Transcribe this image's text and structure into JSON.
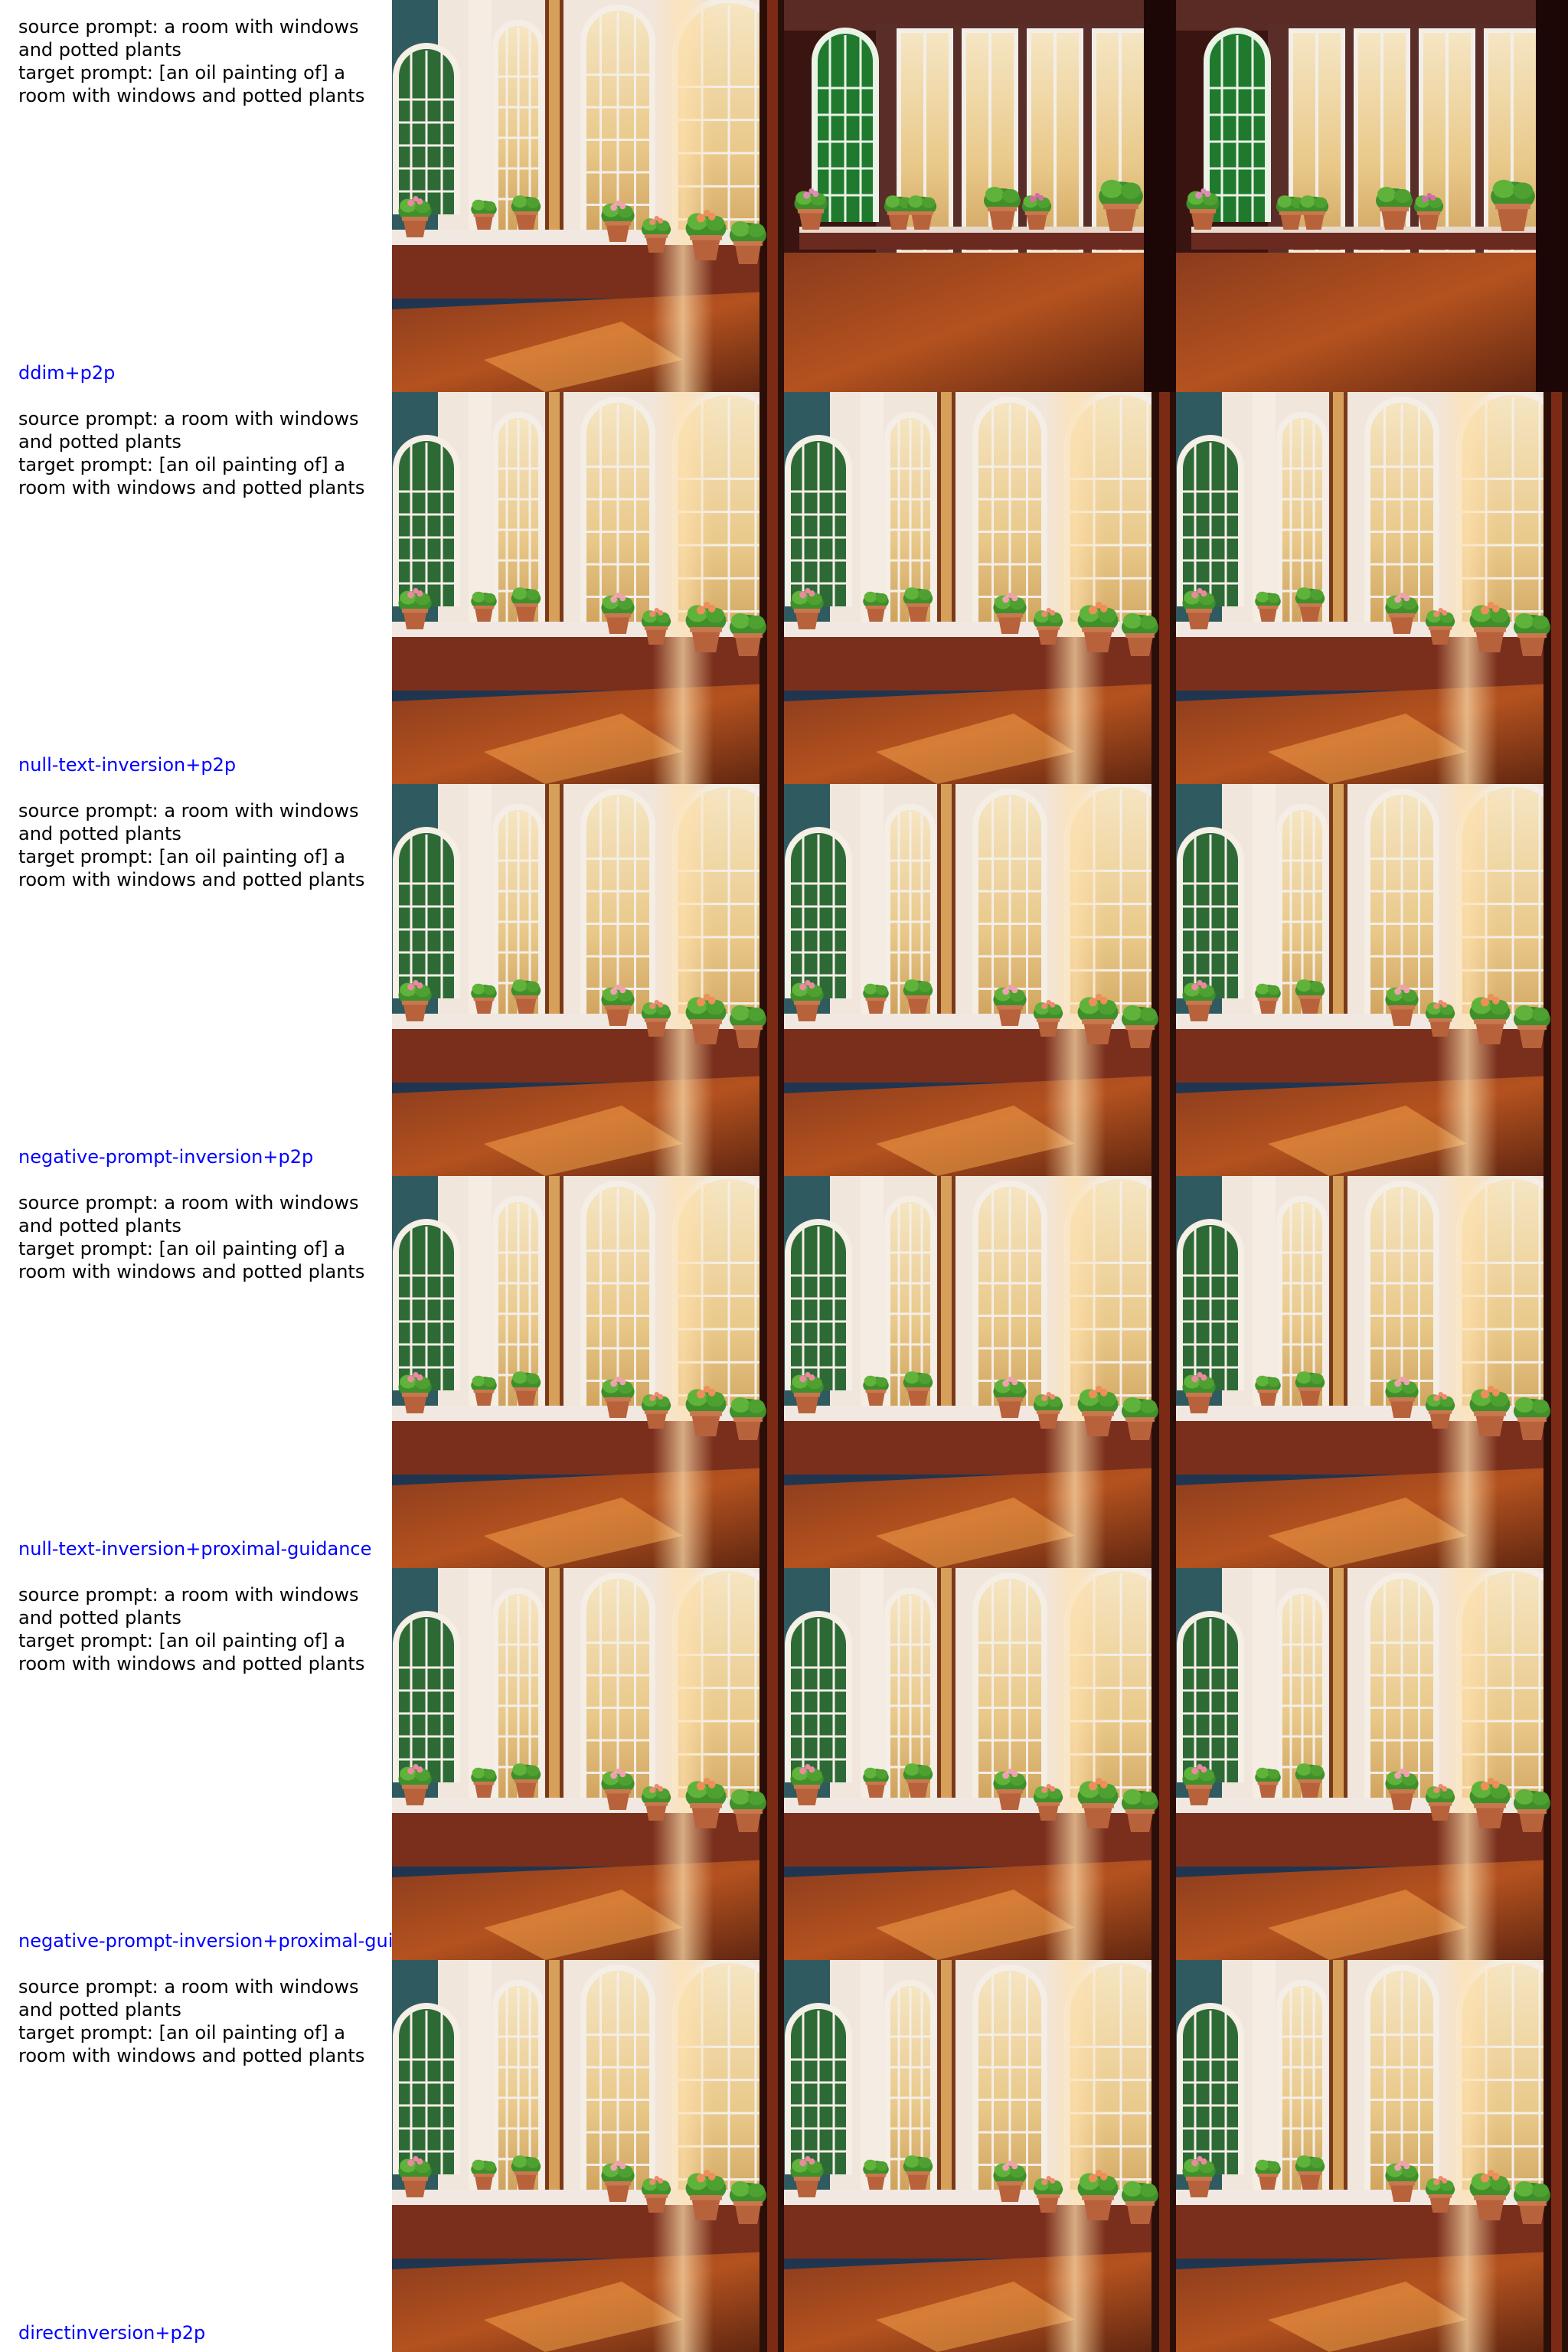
{
  "colors": {
    "method_label": "#0000ff",
    "prompt_text": "#000000"
  },
  "rows": [
    {
      "source_prompt": "source prompt: a room with windows and potted plants",
      "target_prompt": "target prompt: [an oil painting of] a room with windows and potted plants",
      "method": "ddim+p2p"
    },
    {
      "source_prompt": "source prompt: a room with windows and potted plants",
      "target_prompt": "target prompt: [an oil painting of] a room with windows and potted plants",
      "method": "null-text-inversion+p2p"
    },
    {
      "source_prompt": "source prompt: a room with windows and potted plants",
      "target_prompt": "target prompt: [an oil painting of] a room with windows and potted plants",
      "method": "negative-prompt-inversion+p2p"
    },
    {
      "source_prompt": "source prompt: a room with windows and potted plants",
      "target_prompt": "target prompt: [an oil painting of] a room with windows and potted plants",
      "method": "null-text-inversion+proximal-guidance"
    },
    {
      "source_prompt": "source prompt: a room with windows and potted plants",
      "target_prompt": "target prompt: [an oil painting of] a room with windows and potted plants",
      "method": "negative-prompt-inversion+proximal-guidance"
    },
    {
      "source_prompt": "source prompt: a room with windows and potted plants",
      "target_prompt": "target prompt: [an oil painting of] a room with windows and potted plants",
      "method": "directinversion+p2p"
    }
  ]
}
